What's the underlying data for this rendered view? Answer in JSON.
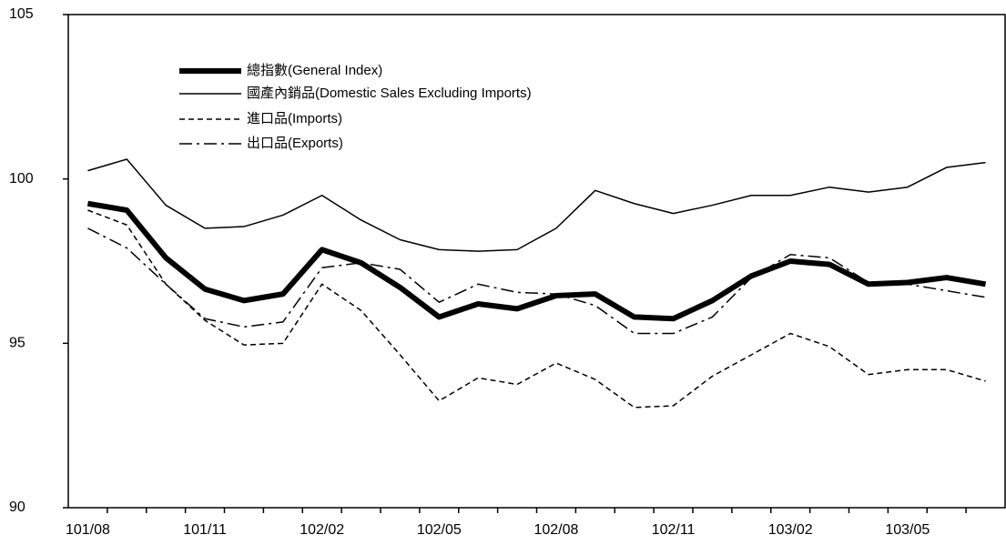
{
  "chart_data": {
    "type": "line",
    "categories": [
      "101/08",
      null,
      null,
      "101/11",
      null,
      null,
      "102/02",
      null,
      null,
      "102/05",
      null,
      null,
      "102/08",
      null,
      null,
      "102/11",
      null,
      null,
      "103/02",
      null,
      null,
      "103/05",
      null,
      null
    ],
    "series": [
      {
        "name": "總指數(General Index)",
        "color": "#000000",
        "linewidth": 6,
        "line_style": "solid",
        "values": [
          99.25,
          99.05,
          97.6,
          96.65,
          96.3,
          96.5,
          97.85,
          97.45,
          96.7,
          95.8,
          96.2,
          96.05,
          96.45,
          96.5,
          95.8,
          95.75,
          96.3,
          97.05,
          97.5,
          97.4,
          96.8,
          96.85,
          97.0,
          96.8
        ]
      },
      {
        "name": "國產內銷品(Domestic Sales Excluding Imports)",
        "color": "#000000",
        "linewidth": 1.5,
        "line_style": "solid",
        "values": [
          100.25,
          100.6,
          99.2,
          98.5,
          98.55,
          98.9,
          99.5,
          98.75,
          98.15,
          97.85,
          97.8,
          97.85,
          98.5,
          99.65,
          99.25,
          98.95,
          99.2,
          99.5,
          99.5,
          99.75,
          99.6,
          99.75,
          100.35,
          100.5
        ]
      },
      {
        "name": "進口品(Imports)",
        "color": "#000000",
        "linewidth": 1.5,
        "line_style": "dashed",
        "values": [
          99.05,
          98.6,
          96.8,
          95.7,
          94.95,
          95.0,
          96.8,
          96.0,
          94.65,
          93.25,
          93.95,
          93.75,
          94.4,
          93.9,
          93.05,
          93.1,
          94.0,
          94.65,
          95.3,
          94.9,
          94.05,
          94.2,
          94.2,
          93.85
        ]
      },
      {
        "name": "出口品(Exports)",
        "color": "#000000",
        "linewidth": 1.5,
        "line_style": "dashdot",
        "values": [
          98.5,
          97.9,
          96.8,
          95.75,
          95.5,
          95.65,
          97.3,
          97.45,
          97.25,
          96.25,
          96.8,
          96.55,
          96.5,
          96.15,
          95.3,
          95.3,
          95.8,
          97.0,
          97.7,
          97.6,
          96.85,
          96.8,
          96.6,
          96.4
        ]
      }
    ],
    "ylim": [
      90,
      105
    ],
    "yticks": [
      90,
      95,
      100,
      105
    ],
    "grid": false,
    "legend": "upper left"
  }
}
